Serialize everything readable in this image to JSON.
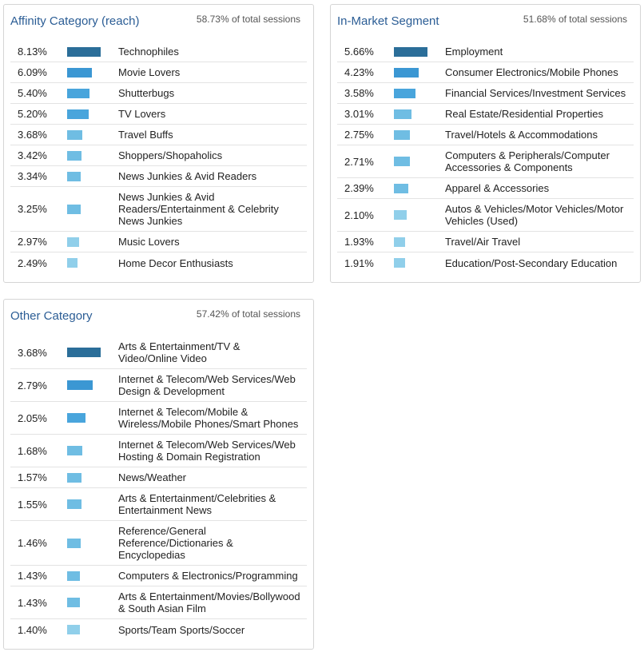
{
  "colors": {
    "title": "#2b5d95",
    "bar_levels": [
      "#2b6e99",
      "#3b97d3",
      "#49a5dc",
      "#6fbde3",
      "#90cfea"
    ]
  },
  "affinity": {
    "title": "Affinity Category (reach)",
    "subtitle": "58.73% of total sessions",
    "rows": [
      {
        "pct": "8.13%",
        "value": 8.13,
        "label": "Technophiles",
        "level": 0
      },
      {
        "pct": "6.09%",
        "value": 6.09,
        "label": "Movie Lovers",
        "level": 1
      },
      {
        "pct": "5.40%",
        "value": 5.4,
        "label": "Shutterbugs",
        "level": 2
      },
      {
        "pct": "5.20%",
        "value": 5.2,
        "label": "TV Lovers",
        "level": 2
      },
      {
        "pct": "3.68%",
        "value": 3.68,
        "label": "Travel Buffs",
        "level": 3
      },
      {
        "pct": "3.42%",
        "value": 3.42,
        "label": "Shoppers/Shopaholics",
        "level": 3
      },
      {
        "pct": "3.34%",
        "value": 3.34,
        "label": "News Junkies & Avid Readers",
        "level": 3
      },
      {
        "pct": "3.25%",
        "value": 3.25,
        "label": "News Junkies & Avid Readers/Entertainment & Celebrity News Junkies",
        "level": 3
      },
      {
        "pct": "2.97%",
        "value": 2.97,
        "label": "Music Lovers",
        "level": 4
      },
      {
        "pct": "2.49%",
        "value": 2.49,
        "label": "Home Decor Enthusiasts",
        "level": 4
      }
    ]
  },
  "inmarket": {
    "title": "In-Market Segment",
    "subtitle": "51.68% of total sessions",
    "rows": [
      {
        "pct": "5.66%",
        "value": 5.66,
        "label": "Employment",
        "level": 0
      },
      {
        "pct": "4.23%",
        "value": 4.23,
        "label": "Consumer Electronics/Mobile Phones",
        "level": 1
      },
      {
        "pct": "3.58%",
        "value": 3.58,
        "label": "Financial Services/Investment Services",
        "level": 2
      },
      {
        "pct": "3.01%",
        "value": 3.01,
        "label": "Real Estate/Residential Properties",
        "level": 3
      },
      {
        "pct": "2.75%",
        "value": 2.75,
        "label": "Travel/Hotels & Accommodations",
        "level": 3
      },
      {
        "pct": "2.71%",
        "value": 2.71,
        "label": "Computers & Peripherals/Computer Accessories & Components",
        "level": 3
      },
      {
        "pct": "2.39%",
        "value": 2.39,
        "label": "Apparel & Accessories",
        "level": 3
      },
      {
        "pct": "2.10%",
        "value": 2.1,
        "label": "Autos & Vehicles/Motor Vehicles/Motor Vehicles (Used)",
        "level": 4
      },
      {
        "pct": "1.93%",
        "value": 1.93,
        "label": "Travel/Air Travel",
        "level": 4
      },
      {
        "pct": "1.91%",
        "value": 1.91,
        "label": "Education/Post-Secondary Education",
        "level": 4
      }
    ]
  },
  "other": {
    "title": "Other Category",
    "subtitle": "57.42% of total sessions",
    "rows": [
      {
        "pct": "3.68%",
        "value": 3.68,
        "label": "Arts & Entertainment/TV & Video/Online Video",
        "level": 0
      },
      {
        "pct": "2.79%",
        "value": 2.79,
        "label": "Internet & Telecom/Web Services/Web Design & Development",
        "level": 1
      },
      {
        "pct": "2.05%",
        "value": 2.05,
        "label": "Internet & Telecom/Mobile & Wireless/Mobile Phones/Smart Phones",
        "level": 2
      },
      {
        "pct": "1.68%",
        "value": 1.68,
        "label": "Internet & Telecom/Web Services/Web Hosting & Domain Registration",
        "level": 3
      },
      {
        "pct": "1.57%",
        "value": 1.57,
        "label": "News/Weather",
        "level": 3
      },
      {
        "pct": "1.55%",
        "value": 1.55,
        "label": "Arts & Entertainment/Celebrities & Entertainment News",
        "level": 3
      },
      {
        "pct": "1.46%",
        "value": 1.46,
        "label": "Reference/General Reference/Dictionaries & Encyclopedias",
        "level": 3
      },
      {
        "pct": "1.43%",
        "value": 1.43,
        "label": "Computers & Electronics/Programming",
        "level": 3
      },
      {
        "pct": "1.43%",
        "value": 1.43,
        "label": "Arts & Entertainment/Movies/Bollywood & South Asian Film",
        "level": 3
      },
      {
        "pct": "1.40%",
        "value": 1.4,
        "label": "Sports/Team Sports/Soccer",
        "level": 4
      }
    ]
  }
}
